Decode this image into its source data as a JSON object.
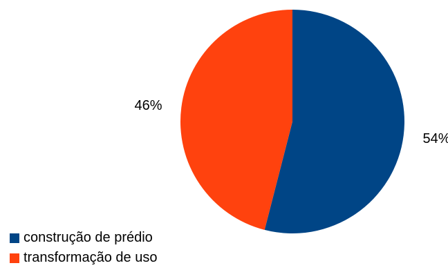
{
  "chart_data": {
    "type": "pie",
    "categories": [
      "construção de prédio",
      "transformação de uso"
    ],
    "values": [
      54,
      46
    ],
    "data_labels": [
      "54%",
      "46%"
    ],
    "colors": [
      "#004586",
      "#ff420e"
    ],
    "legend_placement": "bottom-left"
  }
}
